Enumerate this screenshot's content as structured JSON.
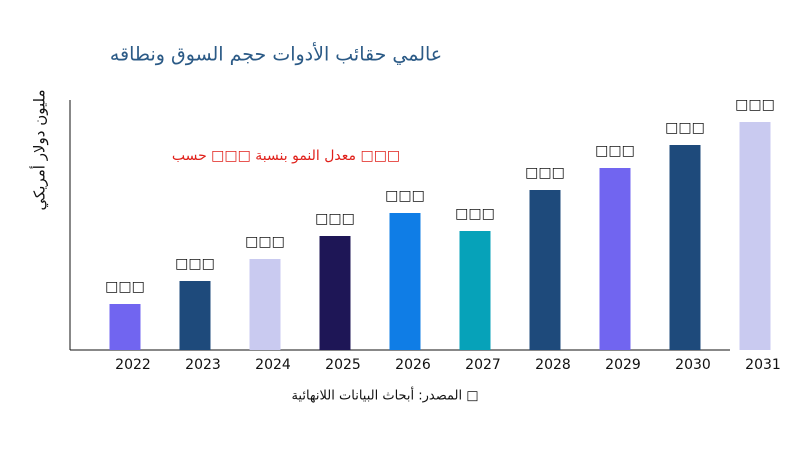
{
  "chart_data": {
    "type": "bar",
    "title": "عالمي حقائب الأدوات حجم السوق ونطاقه",
    "y_axis_label": "مليون دولار أمريكي",
    "annotation": "معدل النمو بنسبة □□□ حسب □□□",
    "source": "المصدر: أبحاث البيانات اللانهائية □",
    "categories": [
      "2022",
      "2023",
      "2024",
      "2025",
      "2026",
      "2027",
      "2028",
      "2029",
      "2030",
      "2031"
    ],
    "values": [
      46,
      69,
      91,
      114,
      137,
      119,
      160,
      182,
      205,
      228
    ],
    "value_labels": [
      "□□□",
      "□□□",
      "□□□",
      "□□□",
      "□□□",
      "□□□",
      "□□□",
      "□□□",
      "□□□",
      "□□□"
    ],
    "colors": [
      "#7165f0",
      "#1e4a7b",
      "#c9caf0",
      "#1e1656",
      "#0f7de6",
      "#06a2b9",
      "#1e4a7b",
      "#7165f0",
      "#1e4a7b",
      "#c9caf0"
    ],
    "ylim": [
      0,
      250
    ]
  }
}
